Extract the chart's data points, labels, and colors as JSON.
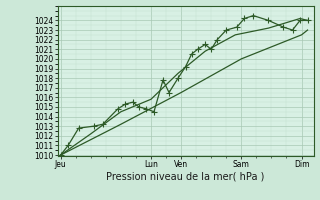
{
  "title": "Pression niveau de la mer( hPa )",
  "bg_color": "#cce8d8",
  "plot_bg_color": "#d8f0e4",
  "grid_color_major": "#a8c8b4",
  "grid_color_minor": "#c4dfd0",
  "line_color": "#2d5a27",
  "ylim": [
    1010,
    1025
  ],
  "yticks": [
    1010,
    1011,
    1012,
    1013,
    1014,
    1015,
    1016,
    1017,
    1018,
    1019,
    1020,
    1021,
    1022,
    1023,
    1024
  ],
  "xtick_labels": [
    "Jeu",
    "Lun",
    "Ven",
    "Sam",
    "Dim"
  ],
  "xtick_positions": [
    0,
    3.0,
    4.0,
    6.0,
    8.0
  ],
  "xlim": [
    -0.1,
    8.4
  ],
  "series1_markers": [
    [
      0.0,
      1010.0
    ],
    [
      0.25,
      1011.0
    ],
    [
      0.6,
      1012.8
    ],
    [
      1.1,
      1013.0
    ],
    [
      1.4,
      1013.2
    ],
    [
      1.9,
      1014.8
    ],
    [
      2.15,
      1015.3
    ],
    [
      2.4,
      1015.5
    ],
    [
      2.6,
      1015.0
    ],
    [
      2.85,
      1014.8
    ],
    [
      3.1,
      1014.5
    ],
    [
      3.4,
      1017.8
    ],
    [
      3.6,
      1016.5
    ],
    [
      3.9,
      1018.0
    ],
    [
      4.15,
      1019.2
    ],
    [
      4.35,
      1020.5
    ],
    [
      4.55,
      1021.0
    ],
    [
      4.8,
      1021.5
    ],
    [
      5.0,
      1021.0
    ],
    [
      5.2,
      1022.0
    ],
    [
      5.5,
      1023.0
    ],
    [
      5.85,
      1023.3
    ],
    [
      6.1,
      1024.2
    ],
    [
      6.4,
      1024.5
    ],
    [
      6.9,
      1024.0
    ],
    [
      7.4,
      1023.3
    ],
    [
      7.7,
      1023.0
    ],
    [
      7.95,
      1024.0
    ],
    [
      8.2,
      1024.0
    ]
  ],
  "series2": [
    [
      0.0,
      1010.0
    ],
    [
      1.0,
      1012.2
    ],
    [
      2.0,
      1014.5
    ],
    [
      3.0,
      1015.8
    ],
    [
      3.9,
      1018.5
    ],
    [
      4.8,
      1020.8
    ],
    [
      5.8,
      1022.5
    ],
    [
      6.9,
      1023.2
    ],
    [
      7.95,
      1024.2
    ],
    [
      8.2,
      1024.0
    ]
  ],
  "series3": [
    [
      0.0,
      1010.0
    ],
    [
      2.0,
      1013.2
    ],
    [
      4.0,
      1016.5
    ],
    [
      6.0,
      1020.0
    ],
    [
      8.0,
      1022.5
    ],
    [
      8.2,
      1023.0
    ]
  ],
  "tick_fontsize": 5.5,
  "label_fontsize": 7,
  "marker_size": 2.5,
  "linewidth": 0.9
}
